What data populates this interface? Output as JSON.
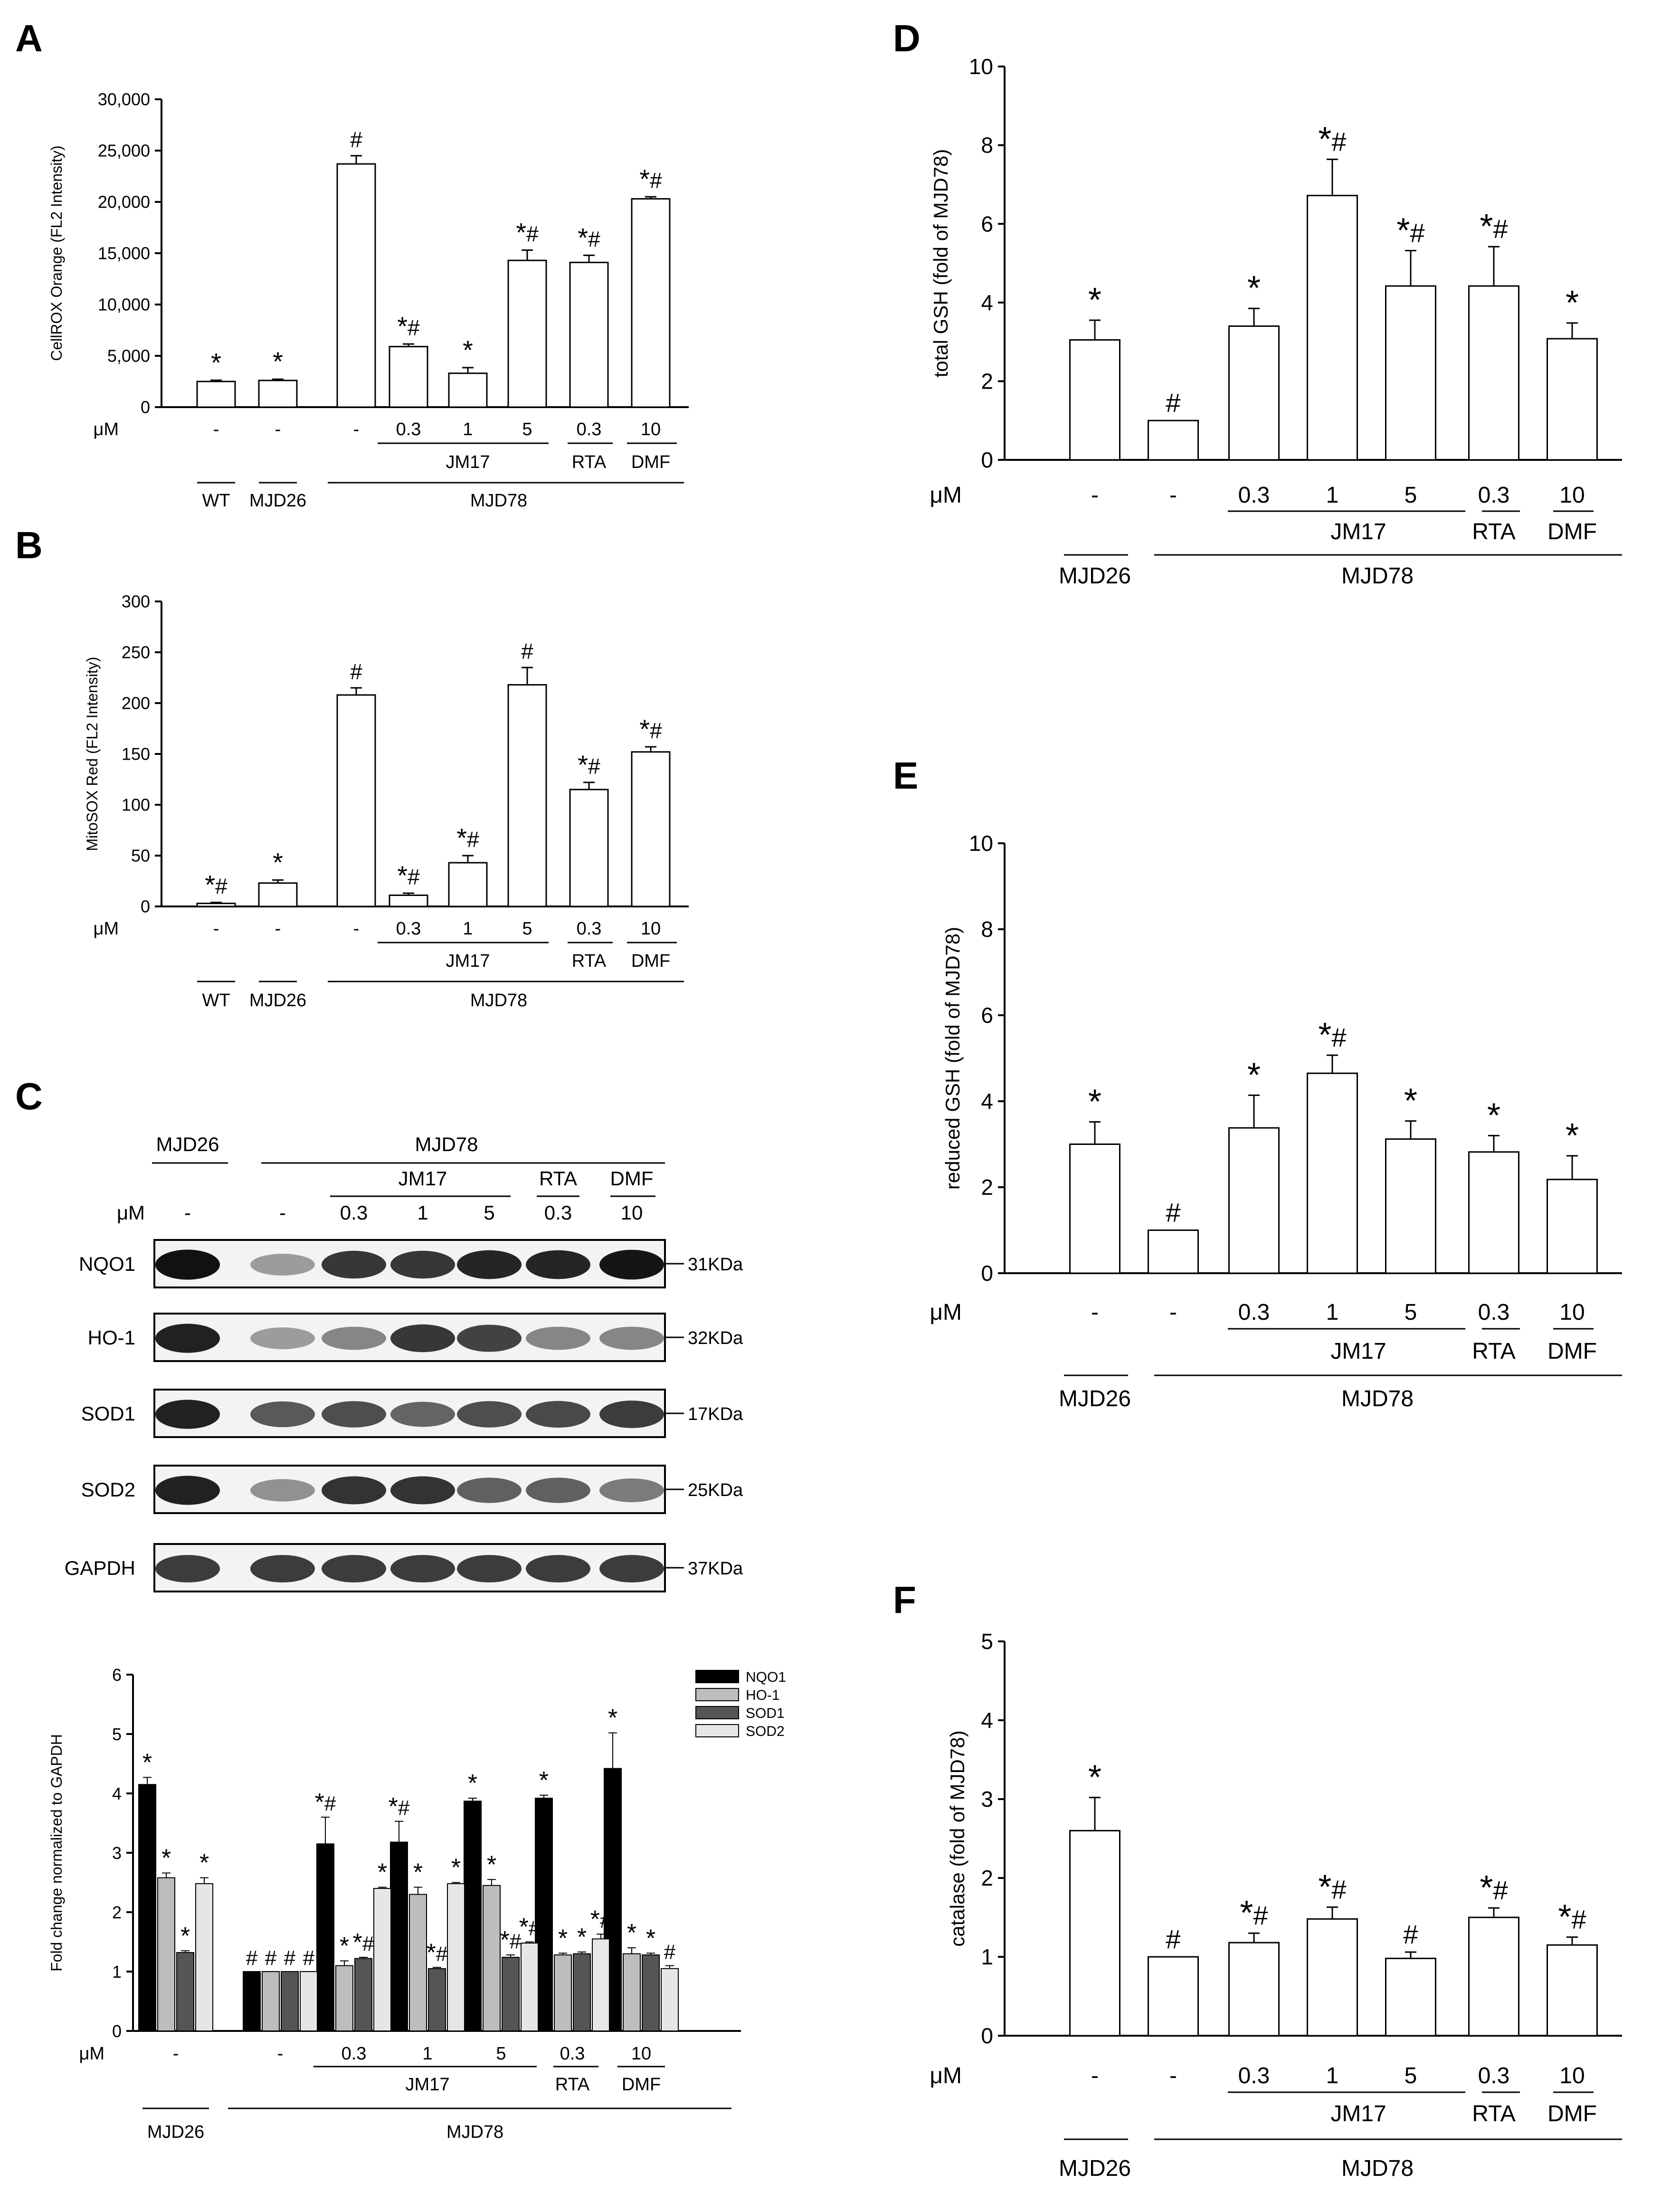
{
  "panels": [
    "A",
    "B",
    "C",
    "D",
    "E",
    "F"
  ],
  "unit_label": "μM",
  "chart_data": [
    {
      "panel": "A",
      "type": "bar",
      "ylabel": "CellROX Orange (FL2 Intensity)",
      "ylim": [
        0,
        30000
      ],
      "yticks": [
        "0",
        "5,000",
        "10,000",
        "15,000",
        "20,000",
        "25,000",
        "30,000"
      ],
      "conc": [
        "-",
        "-",
        "-",
        "0.3",
        "1",
        "5",
        "0.3",
        "10"
      ],
      "values": [
        2500,
        2600,
        23700,
        5900,
        3300,
        14300,
        14100,
        20300
      ],
      "errors": [
        120,
        120,
        800,
        250,
        550,
        1000,
        700,
        200
      ],
      "annotations": [
        "*",
        "*",
        "#",
        "*#",
        "*",
        "*#",
        "*#",
        "*#"
      ],
      "groups": {
        "drugs": [
          "JM17",
          "RTA",
          "DMF"
        ],
        "cells": [
          "WT",
          "MJD26",
          "MJD78"
        ]
      }
    },
    {
      "panel": "B",
      "type": "bar",
      "ylabel": "MitoSOX Red (FL2 Intensity)",
      "ylim": [
        0,
        300
      ],
      "yticks": [
        "0",
        "50",
        "100",
        "150",
        "200",
        "250",
        "300"
      ],
      "conc": [
        "-",
        "-",
        "-",
        "0.3",
        "1",
        "5",
        "0.3",
        "10"
      ],
      "values": [
        3,
        23,
        208,
        11,
        43,
        218,
        115,
        152
      ],
      "errors": [
        1,
        3,
        7,
        2,
        7,
        17,
        7,
        5
      ],
      "annotations": [
        "*#",
        "*",
        "#",
        "*#",
        "*#",
        "#",
        "*#",
        "*#"
      ],
      "groups": {
        "drugs": [
          "JM17",
          "RTA",
          "DMF"
        ],
        "cells": [
          "WT",
          "MJD26",
          "MJD78"
        ]
      }
    },
    {
      "panel": "C",
      "type": "bar",
      "ylabel": "Fold change normalized to GAPDH",
      "ylim": [
        0,
        6
      ],
      "yticks": [
        "0",
        "1",
        "2",
        "3",
        "4",
        "5",
        "6"
      ],
      "conc": [
        "-",
        "-",
        "0.3",
        "1",
        "5",
        "0.3",
        "10"
      ],
      "series": [
        {
          "name": "NQO1",
          "color": "#000000",
          "values": [
            4.15,
            1.0,
            3.15,
            3.18,
            3.87,
            3.92,
            4.42
          ],
          "errors": [
            0.12,
            0,
            0.45,
            0.35,
            0.05,
            0.05,
            0.6
          ],
          "annotations": [
            "*",
            "#",
            "*#",
            "*#",
            "*",
            "*",
            "*"
          ]
        },
        {
          "name": "HO-1",
          "color": "#bdbdbd",
          "values": [
            2.58,
            1.0,
            1.1,
            2.3,
            2.45,
            1.28,
            1.3
          ],
          "errors": [
            0.08,
            0,
            0.08,
            0.12,
            0.1,
            0.03,
            0.1
          ],
          "annotations": [
            "*",
            "#",
            "*",
            "*",
            "*",
            "*",
            "*"
          ]
        },
        {
          "name": "SOD1",
          "color": "#555555",
          "values": [
            1.32,
            1.0,
            1.22,
            1.05,
            1.24,
            1.3,
            1.28
          ],
          "errors": [
            0.03,
            0,
            0.02,
            0.02,
            0.04,
            0.03,
            0.03
          ],
          "annotations": [
            "*",
            "#",
            "*#",
            "*#",
            "*#",
            "*",
            "*"
          ]
        },
        {
          "name": "SOD2",
          "color": "#e6e6e6",
          "values": [
            2.48,
            1.0,
            2.4,
            2.48,
            1.48,
            1.55,
            1.05
          ],
          "errors": [
            0.1,
            0,
            0.02,
            0.02,
            0.02,
            0.08,
            0.05
          ],
          "annotations": [
            "*",
            "#",
            "*",
            "*",
            "*#",
            "*#",
            "#"
          ]
        }
      ],
      "groups": {
        "drugs": [
          "JM17",
          "RTA",
          "DMF"
        ],
        "cells": [
          "MJD26",
          "MJD78"
        ]
      }
    },
    {
      "panel": "D",
      "type": "bar",
      "ylabel": "total GSH (fold of MJD78)",
      "ylim": [
        0,
        10
      ],
      "yticks": [
        "0",
        "2",
        "4",
        "6",
        "8",
        "10"
      ],
      "conc": [
        "-",
        "-",
        "0.3",
        "1",
        "5",
        "0.3",
        "10"
      ],
      "values": [
        3.05,
        1.0,
        3.4,
        6.72,
        4.42,
        4.42,
        3.08
      ],
      "errors": [
        0.5,
        0,
        0.45,
        0.92,
        0.9,
        1.0,
        0.4
      ],
      "annotations": [
        "*",
        "#",
        "*",
        "*#",
        "*#",
        "*#",
        "*"
      ],
      "groups": {
        "drugs": [
          "JM17",
          "RTA",
          "DMF"
        ],
        "cells": [
          "MJD26",
          "MJD78"
        ]
      }
    },
    {
      "panel": "E",
      "type": "bar",
      "ylabel": "reduced GSH (fold of MJD78)",
      "ylim": [
        0,
        10
      ],
      "yticks": [
        "0",
        "2",
        "4",
        "6",
        "8",
        "10"
      ],
      "conc": [
        "-",
        "-",
        "0.3",
        "1",
        "5",
        "0.3",
        "10"
      ],
      "values": [
        3.0,
        1.0,
        3.38,
        4.65,
        3.12,
        2.82,
        2.18
      ],
      "errors": [
        0.52,
        0,
        0.76,
        0.42,
        0.42,
        0.38,
        0.55
      ],
      "annotations": [
        "*",
        "#",
        "*",
        "*#",
        "*",
        "*",
        "*"
      ],
      "groups": {
        "drugs": [
          "JM17",
          "RTA",
          "DMF"
        ],
        "cells": [
          "MJD26",
          "MJD78"
        ]
      }
    },
    {
      "panel": "F",
      "type": "bar",
      "ylabel": "catalase (fold of MJD78)",
      "ylim": [
        0,
        5
      ],
      "yticks": [
        "0",
        "1",
        "2",
        "3",
        "4",
        "5"
      ],
      "conc": [
        "-",
        "-",
        "0.3",
        "1",
        "5",
        "0.3",
        "10"
      ],
      "values": [
        2.6,
        1.0,
        1.18,
        1.48,
        0.98,
        1.5,
        1.15
      ],
      "errors": [
        0.42,
        0,
        0.12,
        0.15,
        0.08,
        0.12,
        0.1
      ],
      "annotations": [
        "*",
        "#",
        "*#",
        "*#",
        "#",
        "*#",
        "*#"
      ],
      "groups": {
        "drugs": [
          "JM17",
          "RTA",
          "DMF"
        ],
        "cells": [
          "MJD26",
          "MJD78"
        ]
      }
    }
  ],
  "western_blot": {
    "cells": [
      "MJD26",
      "MJD78"
    ],
    "drugs": [
      "JM17",
      "RTA",
      "DMF"
    ],
    "conc": [
      "-",
      "-",
      "0.3",
      "1",
      "5",
      "0.3",
      "10"
    ],
    "proteins": [
      {
        "name": "NQO1",
        "kda": "31KDa",
        "intensity": [
          0.97,
          0.35,
          0.8,
          0.8,
          0.88,
          0.88,
          0.95
        ]
      },
      {
        "name": "HO-1",
        "kda": "32KDa",
        "intensity": [
          0.9,
          0.35,
          0.45,
          0.8,
          0.75,
          0.45,
          0.45
        ]
      },
      {
        "name": "SOD1",
        "kda": "17KDa",
        "intensity": [
          0.9,
          0.65,
          0.7,
          0.6,
          0.7,
          0.72,
          0.78
        ]
      },
      {
        "name": "SOD2",
        "kda": "25KDa",
        "intensity": [
          0.9,
          0.4,
          0.82,
          0.82,
          0.62,
          0.62,
          0.5
        ]
      },
      {
        "name": "GAPDH",
        "kda": "37KDa",
        "intensity": [
          0.78,
          0.78,
          0.78,
          0.78,
          0.78,
          0.78,
          0.78
        ]
      }
    ]
  }
}
